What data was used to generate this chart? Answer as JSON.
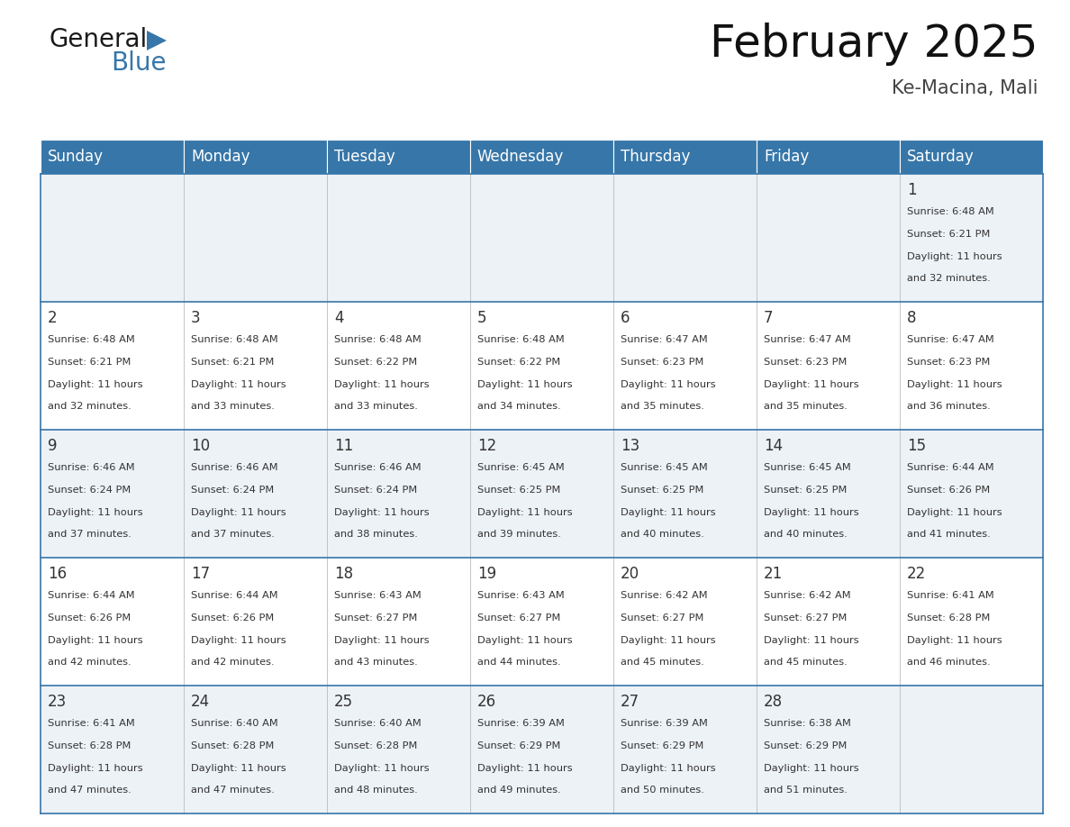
{
  "title": "February 2025",
  "subtitle": "Ke-Macina, Mali",
  "header_color": "#3776a8",
  "header_text_color": "#ffffff",
  "row_bg_even": "#edf2f7",
  "row_bg_odd": "#ffffff",
  "border_color": "#3776a8",
  "text_color": "#333333",
  "days_of_week": [
    "Sunday",
    "Monday",
    "Tuesday",
    "Wednesday",
    "Thursday",
    "Friday",
    "Saturday"
  ],
  "calendar_data": [
    [
      {
        "day": null,
        "sunrise": null,
        "sunset": null,
        "daylight_line1": null,
        "daylight_line2": null
      },
      {
        "day": null,
        "sunrise": null,
        "sunset": null,
        "daylight_line1": null,
        "daylight_line2": null
      },
      {
        "day": null,
        "sunrise": null,
        "sunset": null,
        "daylight_line1": null,
        "daylight_line2": null
      },
      {
        "day": null,
        "sunrise": null,
        "sunset": null,
        "daylight_line1": null,
        "daylight_line2": null
      },
      {
        "day": null,
        "sunrise": null,
        "sunset": null,
        "daylight_line1": null,
        "daylight_line2": null
      },
      {
        "day": null,
        "sunrise": null,
        "sunset": null,
        "daylight_line1": null,
        "daylight_line2": null
      },
      {
        "day": "1",
        "sunrise": "6:48 AM",
        "sunset": "6:21 PM",
        "daylight_line1": "11 hours",
        "daylight_line2": "and 32 minutes."
      }
    ],
    [
      {
        "day": "2",
        "sunrise": "6:48 AM",
        "sunset": "6:21 PM",
        "daylight_line1": "11 hours",
        "daylight_line2": "and 32 minutes."
      },
      {
        "day": "3",
        "sunrise": "6:48 AM",
        "sunset": "6:21 PM",
        "daylight_line1": "11 hours",
        "daylight_line2": "and 33 minutes."
      },
      {
        "day": "4",
        "sunrise": "6:48 AM",
        "sunset": "6:22 PM",
        "daylight_line1": "11 hours",
        "daylight_line2": "and 33 minutes."
      },
      {
        "day": "5",
        "sunrise": "6:48 AM",
        "sunset": "6:22 PM",
        "daylight_line1": "11 hours",
        "daylight_line2": "and 34 minutes."
      },
      {
        "day": "6",
        "sunrise": "6:47 AM",
        "sunset": "6:23 PM",
        "daylight_line1": "11 hours",
        "daylight_line2": "and 35 minutes."
      },
      {
        "day": "7",
        "sunrise": "6:47 AM",
        "sunset": "6:23 PM",
        "daylight_line1": "11 hours",
        "daylight_line2": "and 35 minutes."
      },
      {
        "day": "8",
        "sunrise": "6:47 AM",
        "sunset": "6:23 PM",
        "daylight_line1": "11 hours",
        "daylight_line2": "and 36 minutes."
      }
    ],
    [
      {
        "day": "9",
        "sunrise": "6:46 AM",
        "sunset": "6:24 PM",
        "daylight_line1": "11 hours",
        "daylight_line2": "and 37 minutes."
      },
      {
        "day": "10",
        "sunrise": "6:46 AM",
        "sunset": "6:24 PM",
        "daylight_line1": "11 hours",
        "daylight_line2": "and 37 minutes."
      },
      {
        "day": "11",
        "sunrise": "6:46 AM",
        "sunset": "6:24 PM",
        "daylight_line1": "11 hours",
        "daylight_line2": "and 38 minutes."
      },
      {
        "day": "12",
        "sunrise": "6:45 AM",
        "sunset": "6:25 PM",
        "daylight_line1": "11 hours",
        "daylight_line2": "and 39 minutes."
      },
      {
        "day": "13",
        "sunrise": "6:45 AM",
        "sunset": "6:25 PM",
        "daylight_line1": "11 hours",
        "daylight_line2": "and 40 minutes."
      },
      {
        "day": "14",
        "sunrise": "6:45 AM",
        "sunset": "6:25 PM",
        "daylight_line1": "11 hours",
        "daylight_line2": "and 40 minutes."
      },
      {
        "day": "15",
        "sunrise": "6:44 AM",
        "sunset": "6:26 PM",
        "daylight_line1": "11 hours",
        "daylight_line2": "and 41 minutes."
      }
    ],
    [
      {
        "day": "16",
        "sunrise": "6:44 AM",
        "sunset": "6:26 PM",
        "daylight_line1": "11 hours",
        "daylight_line2": "and 42 minutes."
      },
      {
        "day": "17",
        "sunrise": "6:44 AM",
        "sunset": "6:26 PM",
        "daylight_line1": "11 hours",
        "daylight_line2": "and 42 minutes."
      },
      {
        "day": "18",
        "sunrise": "6:43 AM",
        "sunset": "6:27 PM",
        "daylight_line1": "11 hours",
        "daylight_line2": "and 43 minutes."
      },
      {
        "day": "19",
        "sunrise": "6:43 AM",
        "sunset": "6:27 PM",
        "daylight_line1": "11 hours",
        "daylight_line2": "and 44 minutes."
      },
      {
        "day": "20",
        "sunrise": "6:42 AM",
        "sunset": "6:27 PM",
        "daylight_line1": "11 hours",
        "daylight_line2": "and 45 minutes."
      },
      {
        "day": "21",
        "sunrise": "6:42 AM",
        "sunset": "6:27 PM",
        "daylight_line1": "11 hours",
        "daylight_line2": "and 45 minutes."
      },
      {
        "day": "22",
        "sunrise": "6:41 AM",
        "sunset": "6:28 PM",
        "daylight_line1": "11 hours",
        "daylight_line2": "and 46 minutes."
      }
    ],
    [
      {
        "day": "23",
        "sunrise": "6:41 AM",
        "sunset": "6:28 PM",
        "daylight_line1": "11 hours",
        "daylight_line2": "and 47 minutes."
      },
      {
        "day": "24",
        "sunrise": "6:40 AM",
        "sunset": "6:28 PM",
        "daylight_line1": "11 hours",
        "daylight_line2": "and 47 minutes."
      },
      {
        "day": "25",
        "sunrise": "6:40 AM",
        "sunset": "6:28 PM",
        "daylight_line1": "11 hours",
        "daylight_line2": "and 48 minutes."
      },
      {
        "day": "26",
        "sunrise": "6:39 AM",
        "sunset": "6:29 PM",
        "daylight_line1": "11 hours",
        "daylight_line2": "and 49 minutes."
      },
      {
        "day": "27",
        "sunrise": "6:39 AM",
        "sunset": "6:29 PM",
        "daylight_line1": "11 hours",
        "daylight_line2": "and 50 minutes."
      },
      {
        "day": "28",
        "sunrise": "6:38 AM",
        "sunset": "6:29 PM",
        "daylight_line1": "11 hours",
        "daylight_line2": "and 51 minutes."
      },
      {
        "day": null,
        "sunrise": null,
        "sunset": null,
        "daylight_line1": null,
        "daylight_line2": null
      }
    ]
  ]
}
